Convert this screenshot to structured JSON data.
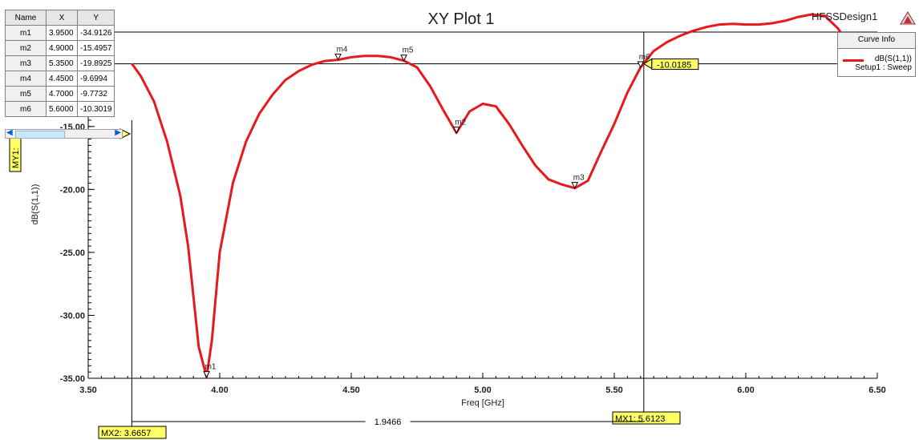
{
  "chart_data": {
    "type": "line",
    "title": "XY Plot 1",
    "design_name": "HFSSDesign1",
    "xlabel": "Freq [GHz]",
    "ylabel": "dB(S(1,1))",
    "xlim": [
      3.5,
      6.5
    ],
    "ylim": [
      -35,
      -7.5
    ],
    "x_ticks": [
      3.5,
      4.0,
      4.5,
      5.0,
      5.5,
      6.0,
      6.5
    ],
    "x_tick_labels": [
      "3.50",
      "4.00",
      "4.50",
      "5.00",
      "5.50",
      "6.00",
      "6.50"
    ],
    "y_ticks": [
      -35,
      -30,
      -25,
      -20,
      -15
    ],
    "y_tick_labels": [
      "-35.00",
      "-30.00",
      "-25.00",
      "-20.00",
      "-15.00"
    ],
    "legend": {
      "title": "Curve Info",
      "placement": "top-right",
      "entries": [
        {
          "name": "dB(S(1,1))",
          "sub": "Setup1 : Sweep",
          "color": "#e8191c"
        }
      ]
    },
    "series": [
      {
        "name": "dB(S(1,1))",
        "color": "#e8191c",
        "x": [
          3.6657,
          3.7,
          3.75,
          3.8,
          3.85,
          3.88,
          3.9,
          3.92,
          3.95,
          3.97,
          4.0,
          4.05,
          4.1,
          4.15,
          4.2,
          4.25,
          4.3,
          4.35,
          4.4,
          4.45,
          4.5,
          4.55,
          4.6,
          4.65,
          4.7,
          4.75,
          4.8,
          4.85,
          4.9,
          4.95,
          5.0,
          5.05,
          5.1,
          5.15,
          5.2,
          5.25,
          5.3,
          5.35,
          5.4,
          5.45,
          5.5,
          5.55,
          5.6,
          5.65,
          5.7,
          5.75,
          5.8,
          5.85,
          5.9,
          5.95,
          6.0,
          6.05,
          6.1,
          6.15,
          6.2,
          6.25,
          6.3,
          6.35,
          6.4,
          6.45,
          6.48,
          6.5
        ],
        "values": [
          -10.0,
          -11.0,
          -13.0,
          -16.2,
          -20.5,
          -24.5,
          -28.5,
          -32.5,
          -34.9,
          -32.0,
          -25.0,
          -19.5,
          -16.2,
          -14.0,
          -12.5,
          -11.3,
          -10.6,
          -10.1,
          -9.8,
          -9.7,
          -9.5,
          -9.4,
          -9.4,
          -9.5,
          -9.77,
          -10.3,
          -11.8,
          -13.7,
          -15.5,
          -13.8,
          -13.2,
          -13.4,
          -14.8,
          -16.5,
          -18.1,
          -19.2,
          -19.6,
          -19.9,
          -19.3,
          -17.0,
          -14.8,
          -12.3,
          -10.3,
          -9.0,
          -8.3,
          -7.8,
          -7.4,
          -7.1,
          -6.9,
          -6.85,
          -6.9,
          -6.9,
          -6.8,
          -6.6,
          -6.3,
          -6.1,
          -6.2,
          -7.2,
          -8.7,
          -9.4,
          -9.3,
          -9.1
        ]
      }
    ],
    "markers": [
      {
        "name": "m1",
        "x": "3.9500",
        "y": "-34.9126"
      },
      {
        "name": "m2",
        "x": "4.9000",
        "y": "-15.4957"
      },
      {
        "name": "m3",
        "x": "5.3500",
        "y": "-19.8925"
      },
      {
        "name": "m4",
        "x": "4.4500",
        "y": "-9.6994"
      },
      {
        "name": "m5",
        "x": "4.7000",
        "y": "-9.7732"
      },
      {
        "name": "m6",
        "x": "5.6000",
        "y": "-10.3019"
      }
    ],
    "marker_table_headers": [
      "Name",
      "X",
      "Y"
    ],
    "cursors": {
      "my1_label": "MY1:",
      "my1_value": -10.0185,
      "my1_text": "-10.0185",
      "mx1_value": 5.6123,
      "mx1_label": "MX1: 5.6123",
      "mx2_value": 3.6657,
      "mx2_label": "MX2: 3.6657",
      "delta_label": "1.9466"
    },
    "grid": false
  }
}
